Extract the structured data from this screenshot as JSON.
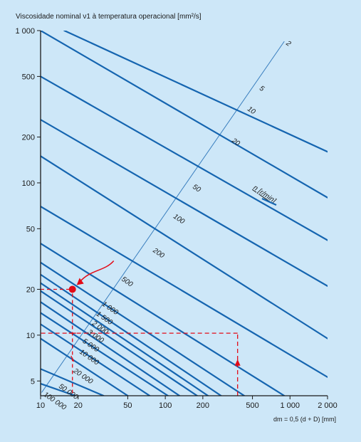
{
  "chart_data": {
    "type": "line",
    "title": "Viscosidade nominal ν1 à temperatura operacional [mm²/s]",
    "xlabel": "dm = 0,5 (d + D) [mm]",
    "ylabel": "",
    "x_scale": "log",
    "y_scale": "log",
    "xlim": [
      10,
      2000
    ],
    "ylim": [
      4,
      1000
    ],
    "x_ticks": [
      {
        "value": 10,
        "label": "10"
      },
      {
        "value": 20,
        "label": "20"
      },
      {
        "value": 50,
        "label": "50"
      },
      {
        "value": 100,
        "label": "100"
      },
      {
        "value": 200,
        "label": "200"
      },
      {
        "value": 500,
        "label": "500"
      },
      {
        "value": 1000,
        "label": "1 000"
      },
      {
        "value": 2000,
        "label": "2 000"
      }
    ],
    "y_ticks": [
      {
        "value": 5,
        "label": "5"
      },
      {
        "value": 10,
        "label": "10"
      },
      {
        "value": 20,
        "label": "20"
      },
      {
        "value": 50,
        "label": "50"
      },
      {
        "value": 100,
        "label": "100"
      },
      {
        "value": 200,
        "label": "200"
      },
      {
        "value": 500,
        "label": "500"
      },
      {
        "value": 1000,
        "label": "1 000"
      }
    ],
    "legend_label": "n [r/min]",
    "line_color": "#1565b0",
    "series": [
      {
        "name": "2",
        "points": [
          [
            15.5,
            1000
          ],
          [
            2000,
            160
          ]
        ],
        "label_at": [
          900,
          850
        ]
      },
      {
        "name": "5",
        "points": [
          [
            10,
            1000
          ],
          [
            2000,
            80
          ]
        ],
        "label_at": [
          550,
          430
        ]
      },
      {
        "name": "10",
        "points": [
          [
            10,
            500
          ],
          [
            2000,
            42
          ]
        ],
        "label_at": [
          440,
          315
        ]
      },
      {
        "name": "20",
        "points": [
          [
            10,
            260
          ],
          [
            2000,
            21
          ]
        ],
        "label_at": [
          330,
          195
        ]
      },
      {
        "name": "50",
        "points": [
          [
            10,
            150
          ],
          [
            2000,
            9.5
          ]
        ],
        "label_at": [
          160,
          97
        ]
      },
      {
        "name": "100",
        "points": [
          [
            10,
            70
          ],
          [
            2000,
            5.3
          ]
        ],
        "label_at": [
          112,
          62
        ]
      },
      {
        "name": "200",
        "points": [
          [
            10,
            40
          ],
          [
            900,
            4
          ]
        ],
        "label_at": [
          77,
          37
        ]
      },
      {
        "name": "500",
        "points": [
          [
            10,
            30
          ],
          [
            430,
            4
          ]
        ],
        "label_at": [
          43,
          24
        ]
      },
      {
        "name": "1 000",
        "points": [
          [
            10,
            25
          ],
          [
            280,
            4
          ]
        ],
        "label_at": [
          30,
          16.5
        ]
      },
      {
        "name": "1 500",
        "points": [
          [
            10,
            22
          ],
          [
            220,
            4
          ]
        ],
        "label_at": [
          27,
          14.2
        ]
      },
      {
        "name": "2 000",
        "points": [
          [
            10,
            19.5
          ],
          [
            180,
            4
          ]
        ],
        "label_at": [
          25,
          12.3
        ]
      },
      {
        "name": "3 000",
        "points": [
          [
            10,
            16.5
          ],
          [
            130,
            4
          ]
        ],
        "label_at": [
          23,
          10.8
        ]
      },
      {
        "name": "5 000",
        "points": [
          [
            10,
            14
          ],
          [
            105,
            4
          ]
        ],
        "label_at": [
          21,
          9.4
        ]
      },
      {
        "name": "10 000",
        "points": [
          [
            10,
            11.8
          ],
          [
            75,
            4
          ]
        ],
        "label_at": [
          19.8,
          8.0
        ]
      },
      {
        "name": "20 000",
        "points": [
          [
            10,
            9.5
          ],
          [
            50,
            4
          ]
        ],
        "label_at": [
          17.7,
          6.0
        ]
      },
      {
        "name": "50 000",
        "points": [
          [
            10,
            6.0
          ],
          [
            32,
            4
          ]
        ],
        "label_at": [
          13.5,
          4.75
        ]
      },
      {
        "name": "100 000",
        "points": [
          [
            10,
            4.8
          ],
          [
            19,
            4
          ]
        ],
        "label_at": [
          10.2,
          4.2
        ]
      }
    ],
    "annotations": {
      "hand_marker": {
        "x": 18,
        "y": 20
      },
      "example_path": {
        "x_start": 380,
        "y_level": 10.3,
        "x_end": 10
      }
    }
  }
}
